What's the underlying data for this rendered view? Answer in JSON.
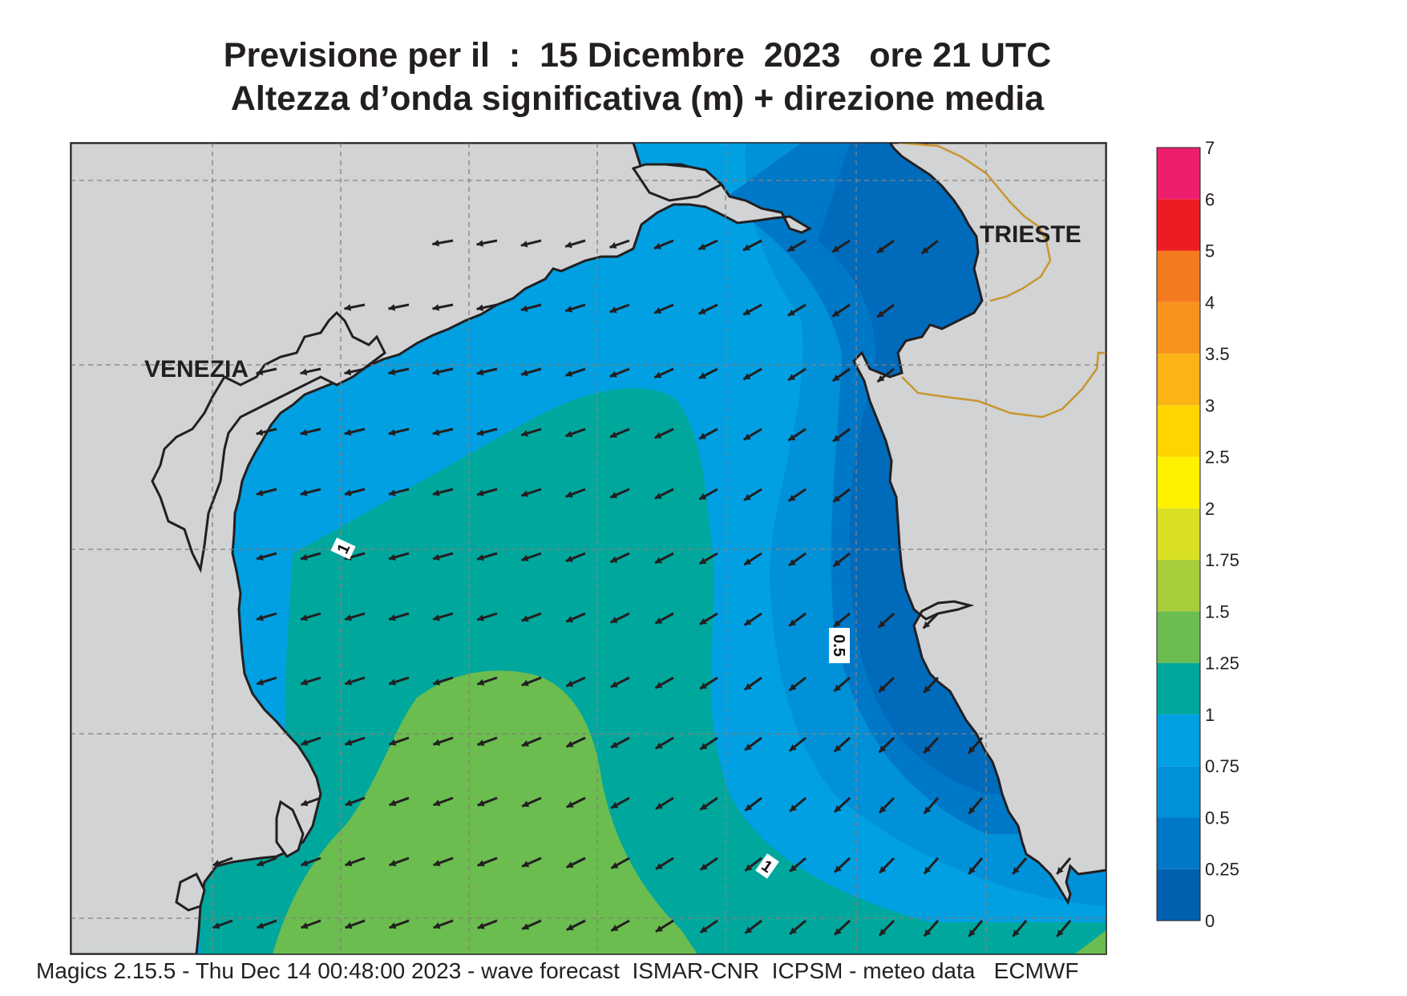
{
  "title": {
    "line1": "Previsione per il  :  15 Dicembre  2023   ore 21 UTC",
    "line2": "Altezza d’onda significativa (m) + direzione media"
  },
  "map": {
    "cities": [
      {
        "name": "VENEZIA"
      },
      {
        "name": "TRIESTE"
      }
    ],
    "contour_labels": [
      "1",
      "0.5",
      "1"
    ],
    "land_color": "#d1d3d4",
    "border_color": "#c8962e",
    "arrow_direction": "mostly westward / south-westward"
  },
  "legend": {
    "title": "",
    "levels": [
      "0",
      "0.25",
      "0.5",
      "0.75",
      "1",
      "1.25",
      "1.5",
      "1.75",
      "2",
      "2.5",
      "3",
      "3.5",
      "4",
      "5",
      "6",
      "7"
    ],
    "colors": [
      "#0061b1",
      "#0078c8",
      "#0091d9",
      "#00a0e3",
      "#00a79d",
      "#6bbd4f",
      "#a6cd3a",
      "#d9e021",
      "#fff200",
      "#ffd400",
      "#fbb316",
      "#f7941d",
      "#f47a20",
      "#ed1c24",
      "#ee1e6e"
    ]
  },
  "footer": {
    "text": "Magics 2.15.5 - Thu Dec 14 00:48:00 2023 - wave forecast  ISMAR-CNR  ICPSM - meteo data   ECMWF"
  }
}
